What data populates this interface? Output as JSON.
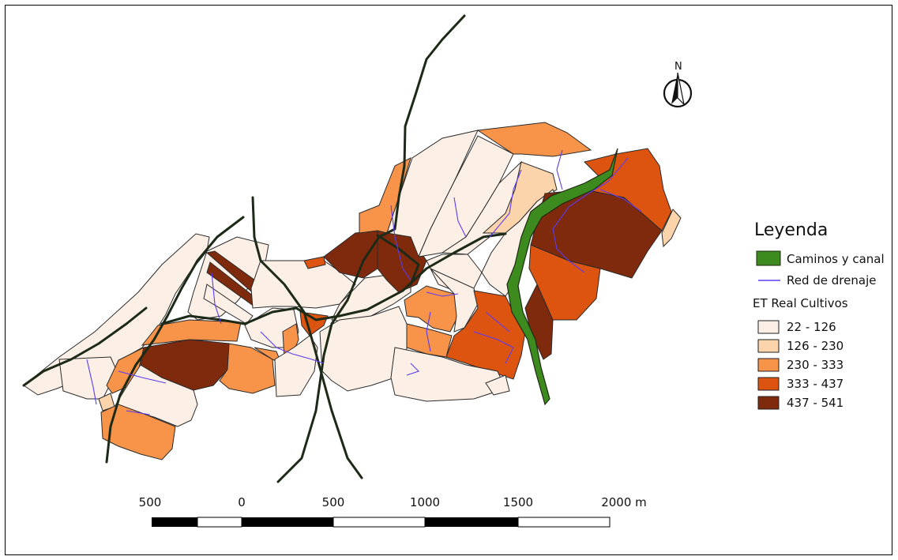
{
  "legend": {
    "title": "Leyenda",
    "layers": [
      {
        "label": "Caminos y canal",
        "color": "#3d8a1e",
        "kind": "polygon"
      },
      {
        "label": "Red de drenaje",
        "color": "#5b3cf0",
        "kind": "line"
      }
    ],
    "group_title": "ET Real Cultivos",
    "classes": [
      {
        "label": "22 - 126",
        "color": "#fbefe6"
      },
      {
        "label": "126 - 230",
        "color": "#fbd4ac"
      },
      {
        "label": "230 - 333",
        "color": "#f7944a"
      },
      {
        "label": "333 - 437",
        "color": "#dc5410"
      },
      {
        "label": "437 - 541",
        "color": "#7f2a0c"
      }
    ]
  },
  "north_arrow": {
    "label": "N",
    "icon": "north-arrow-icon"
  },
  "scale_bar": {
    "labels": [
      "500",
      "0",
      "500",
      "1000",
      "1500",
      "2000 m"
    ]
  }
}
